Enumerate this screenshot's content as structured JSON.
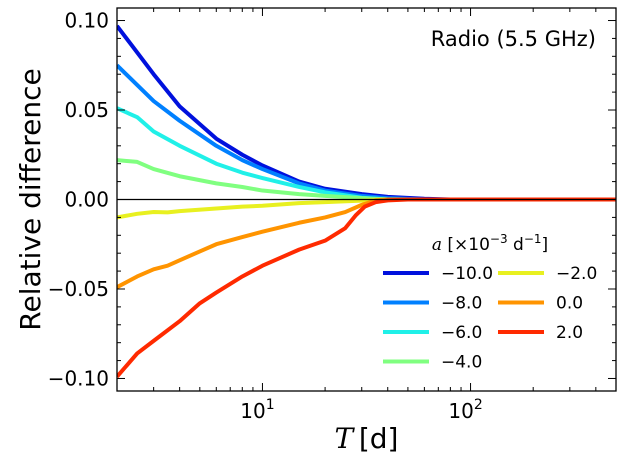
{
  "chart_data": {
    "type": "line",
    "title": "",
    "annotation": "Radio (5.5 GHz)",
    "xlabel": {
      "symbol": "T",
      "unit": "[d]"
    },
    "ylabel": "Relative difference",
    "xscale": "log",
    "xlim": [
      2,
      500
    ],
    "ylim": [
      -0.107,
      0.107
    ],
    "xticks": [
      10,
      100
    ],
    "xtick_labels": [
      {
        "base": "10",
        "exp": "1"
      },
      {
        "base": "10",
        "exp": "2"
      }
    ],
    "yticks": [
      -0.1,
      -0.05,
      0.0,
      0.05,
      0.1
    ],
    "ytick_labels": [
      "−0.10",
      "−0.05",
      "0.00",
      "0.05",
      "0.10"
    ],
    "zero_line": true,
    "grid": false,
    "legend": {
      "title": "a [×10⁻³ d⁻¹]",
      "title_parts": {
        "symbol": "a",
        "pre": "[×10",
        "exp": "−3",
        "mid": " d",
        "exp2": "−1",
        "post": "]"
      },
      "placement": "lower-right",
      "columns": 2
    },
    "series": [
      {
        "name": "−10.0",
        "color": "#0011dd",
        "points": [
          [
            2.0,
            0.097
          ],
          [
            3.0,
            0.07
          ],
          [
            4.0,
            0.052
          ],
          [
            6.0,
            0.034
          ],
          [
            8.0,
            0.025
          ],
          [
            10.0,
            0.019
          ],
          [
            15.0,
            0.01
          ],
          [
            20.0,
            0.006
          ],
          [
            30.0,
            0.003
          ],
          [
            40.0,
            0.0015
          ],
          [
            60.0,
            0.0004
          ],
          [
            80.0,
            0.0
          ],
          [
            500.0,
            0.0
          ]
        ]
      },
      {
        "name": "−8.0",
        "color": "#0080ff",
        "points": [
          [
            2.0,
            0.075
          ],
          [
            3.0,
            0.055
          ],
          [
            4.0,
            0.044
          ],
          [
            6.0,
            0.03
          ],
          [
            8.0,
            0.022
          ],
          [
            10.0,
            0.017
          ],
          [
            15.0,
            0.009
          ],
          [
            20.0,
            0.005
          ],
          [
            30.0,
            0.002
          ],
          [
            40.0,
            0.0008
          ],
          [
            60.0,
            0.0
          ],
          [
            500.0,
            0.0
          ]
        ]
      },
      {
        "name": "−6.0",
        "color": "#20f0e8",
        "points": [
          [
            2.0,
            0.051
          ],
          [
            2.5,
            0.046
          ],
          [
            3.0,
            0.038
          ],
          [
            4.0,
            0.03
          ],
          [
            6.0,
            0.02
          ],
          [
            8.0,
            0.015
          ],
          [
            10.0,
            0.012
          ],
          [
            15.0,
            0.007
          ],
          [
            20.0,
            0.004
          ],
          [
            30.0,
            0.001
          ],
          [
            40.0,
            0.0
          ],
          [
            500.0,
            0.0
          ]
        ]
      },
      {
        "name": "−4.0",
        "color": "#80ff80",
        "points": [
          [
            2.0,
            0.022
          ],
          [
            2.5,
            0.021
          ],
          [
            3.0,
            0.017
          ],
          [
            4.0,
            0.013
          ],
          [
            6.0,
            0.009
          ],
          [
            8.0,
            0.007
          ],
          [
            10.0,
            0.005
          ],
          [
            15.0,
            0.003
          ],
          [
            20.0,
            0.002
          ],
          [
            30.0,
            0.0008
          ],
          [
            40.0,
            0.0
          ],
          [
            500.0,
            0.0
          ]
        ]
      },
      {
        "name": "−2.0",
        "color": "#e8f020",
        "points": [
          [
            2.0,
            -0.01
          ],
          [
            2.5,
            -0.008
          ],
          [
            3.0,
            -0.007
          ],
          [
            3.5,
            -0.0072
          ],
          [
            4.0,
            -0.0065
          ],
          [
            6.0,
            -0.005
          ],
          [
            8.0,
            -0.004
          ],
          [
            10.0,
            -0.0035
          ],
          [
            15.0,
            -0.002
          ],
          [
            20.0,
            -0.0015
          ],
          [
            30.0,
            -0.0006
          ],
          [
            40.0,
            0.0
          ],
          [
            500.0,
            0.0
          ]
        ]
      },
      {
        "name": "0.0",
        "color": "#ff9400",
        "points": [
          [
            2.0,
            -0.049
          ],
          [
            2.5,
            -0.043
          ],
          [
            3.0,
            -0.039
          ],
          [
            3.5,
            -0.037
          ],
          [
            4.0,
            -0.034
          ],
          [
            5.0,
            -0.029
          ],
          [
            6.0,
            -0.025
          ],
          [
            8.0,
            -0.021
          ],
          [
            10.0,
            -0.018
          ],
          [
            15.0,
            -0.013
          ],
          [
            20.0,
            -0.01
          ],
          [
            25.0,
            -0.007
          ],
          [
            30.0,
            -0.003
          ],
          [
            35.0,
            -0.0005
          ],
          [
            40.0,
            0.0
          ],
          [
            500.0,
            0.0
          ]
        ]
      },
      {
        "name": "2.0",
        "color": "#ff2a00",
        "points": [
          [
            2.0,
            -0.099
          ],
          [
            2.5,
            -0.086
          ],
          [
            3.0,
            -0.079
          ],
          [
            4.0,
            -0.068
          ],
          [
            5.0,
            -0.058
          ],
          [
            6.0,
            -0.052
          ],
          [
            8.0,
            -0.043
          ],
          [
            10.0,
            -0.037
          ],
          [
            15.0,
            -0.028
          ],
          [
            20.0,
            -0.023
          ],
          [
            25.0,
            -0.016
          ],
          [
            28.0,
            -0.009
          ],
          [
            31.0,
            -0.004
          ],
          [
            35.0,
            -0.0015
          ],
          [
            40.0,
            -0.0005
          ],
          [
            50.0,
            0.0
          ],
          [
            500.0,
            0.0
          ]
        ]
      }
    ]
  }
}
